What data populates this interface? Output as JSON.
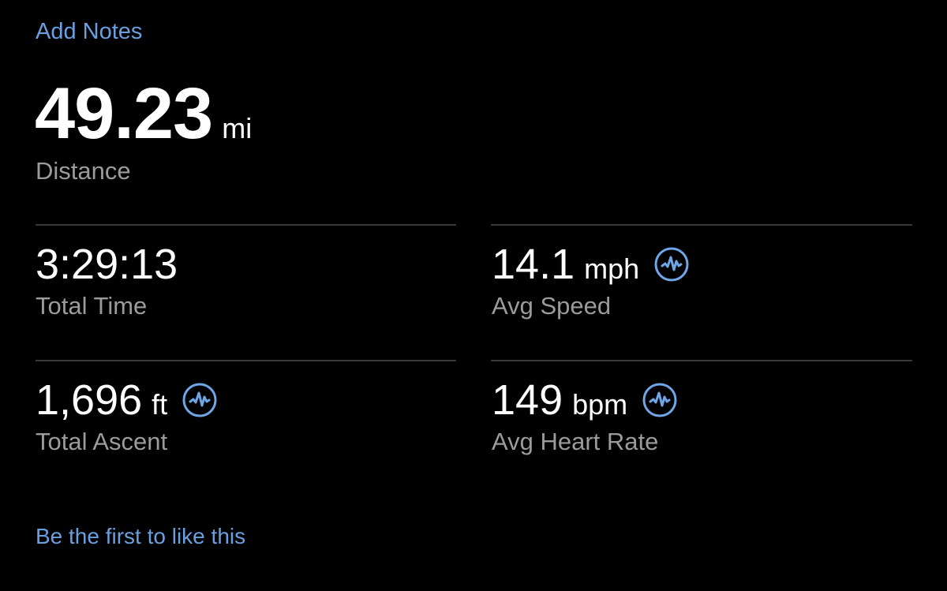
{
  "add_notes_label": "Add Notes",
  "distance": {
    "value": "49.23",
    "unit": "mi",
    "label": "Distance"
  },
  "stats": [
    {
      "value": "3:29:13",
      "unit": "",
      "label": "Total Time",
      "icon": null
    },
    {
      "value": "14.1",
      "unit": "mph",
      "label": "Avg Speed",
      "icon": "chart-wave-icon"
    },
    {
      "value": "1,696",
      "unit": "ft",
      "label": "Total Ascent",
      "icon": "chart-wave-icon"
    },
    {
      "value": "149",
      "unit": "bpm",
      "label": "Avg Heart Rate",
      "icon": "chart-wave-icon"
    }
  ],
  "like_label": "Be the first to like this",
  "colors": {
    "accent": "#6a9fe0",
    "background": "#000000",
    "label": "#9b9b9b",
    "divider": "#3a3a3a"
  }
}
